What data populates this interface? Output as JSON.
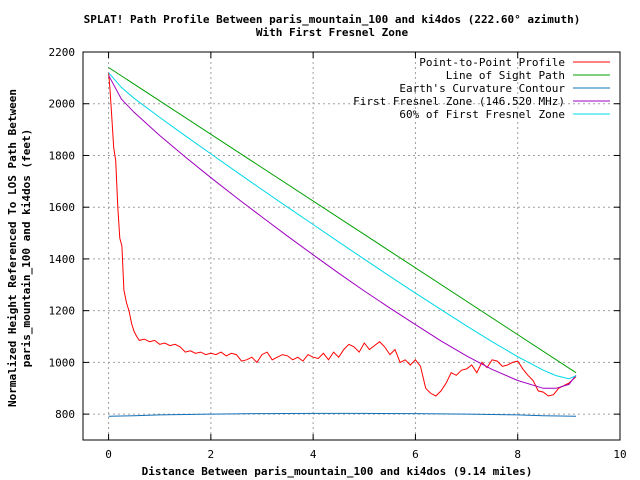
{
  "chart_data": {
    "type": "line",
    "title": "SPLAT! Path Profile Between paris_mountain_100 and ki4dos (222.60° azimuth)",
    "subtitle": "With First Fresnel Zone",
    "xlabel": "Distance Between paris_mountain_100 and ki4dos (9.14 miles)",
    "ylabel_line1": "Normalized Height Referenced To LOS Path Between",
    "ylabel_line2": "paris_mountain_100 and ki4dos (feet)",
    "xlim": [
      -0.5,
      10
    ],
    "ylim": [
      700,
      2200
    ],
    "xticks": [
      0,
      2,
      4,
      6,
      8,
      10
    ],
    "yticks": [
      800,
      1000,
      1200,
      1400,
      1600,
      1800,
      2000,
      2200
    ],
    "grid": true,
    "legend_position": "top-right",
    "series": [
      {
        "name": "Point-to-Point Profile",
        "color": "#ff0000",
        "x": [
          0,
          0.03,
          0.06,
          0.1,
          0.14,
          0.18,
          0.22,
          0.26,
          0.3,
          0.35,
          0.4,
          0.45,
          0.5,
          0.55,
          0.6,
          0.7,
          0.8,
          0.9,
          1.0,
          1.1,
          1.2,
          1.3,
          1.4,
          1.5,
          1.6,
          1.7,
          1.8,
          1.9,
          2.0,
          2.1,
          2.2,
          2.3,
          2.4,
          2.5,
          2.6,
          2.7,
          2.8,
          2.9,
          3.0,
          3.1,
          3.2,
          3.3,
          3.4,
          3.5,
          3.6,
          3.7,
          3.8,
          3.9,
          4.0,
          4.1,
          4.2,
          4.3,
          4.4,
          4.5,
          4.6,
          4.7,
          4.8,
          4.9,
          5.0,
          5.1,
          5.2,
          5.3,
          5.4,
          5.5,
          5.6,
          5.7,
          5.8,
          5.9,
          6.0,
          6.1,
          6.2,
          6.3,
          6.4,
          6.5,
          6.6,
          6.7,
          6.8,
          6.9,
          7.0,
          7.1,
          7.2,
          7.3,
          7.4,
          7.5,
          7.6,
          7.7,
          7.8,
          7.9,
          8.0,
          8.1,
          8.2,
          8.3,
          8.4,
          8.5,
          8.6,
          8.7,
          8.8,
          8.9,
          9.0,
          9.14
        ],
        "y": [
          2120,
          2050,
          1960,
          1830,
          1780,
          1600,
          1480,
          1450,
          1280,
          1230,
          1200,
          1150,
          1120,
          1100,
          1085,
          1090,
          1080,
          1085,
          1070,
          1075,
          1065,
          1070,
          1060,
          1040,
          1045,
          1035,
          1040,
          1030,
          1035,
          1030,
          1040,
          1025,
          1035,
          1030,
          1005,
          1010,
          1020,
          1000,
          1030,
          1040,
          1010,
          1020,
          1030,
          1025,
          1010,
          1020,
          1005,
          1030,
          1020,
          1015,
          1035,
          1010,
          1040,
          1020,
          1050,
          1070,
          1060,
          1040,
          1075,
          1050,
          1065,
          1080,
          1060,
          1030,
          1050,
          1000,
          1010,
          990,
          1010,
          985,
          900,
          880,
          870,
          890,
          920,
          960,
          950,
          970,
          975,
          990,
          960,
          1000,
          980,
          1010,
          1005,
          985,
          990,
          1000,
          1005,
          975,
          950,
          930,
          890,
          885,
          870,
          875,
          900,
          910,
          920,
          945
        ]
      },
      {
        "name": "Line of Sight Path",
        "color": "#00a000",
        "x": [
          0,
          9.14
        ],
        "y": [
          2140,
          960
        ]
      },
      {
        "name": "Earth's Curvature Contour",
        "color": "#1070b8",
        "x": [
          0,
          0.5,
          1,
          2,
          3,
          4,
          5,
          6,
          7,
          8,
          8.5,
          9.14
        ],
        "y": [
          792,
          794,
          797,
          800,
          802,
          803,
          803,
          802,
          800,
          797,
          794,
          792
        ]
      },
      {
        "name": "First Fresnel Zone (146.520 MHz)",
        "color": "#a000c0",
        "x": [
          0,
          0.25,
          0.5,
          1,
          1.5,
          2,
          2.5,
          3,
          3.5,
          4,
          4.5,
          5,
          5.5,
          6,
          6.5,
          7,
          7.5,
          8,
          8.5,
          8.75,
          9.0,
          9.14
        ],
        "y": [
          2110,
          2018,
          1967,
          1877,
          1794,
          1714,
          1637,
          1562,
          1488,
          1416,
          1345,
          1276,
          1210,
          1146,
          1083,
          1025,
          973,
          930,
          900,
          900,
          915,
          950
        ]
      },
      {
        "name": "60% of First Fresnel Zone",
        "color": "#00d8e8",
        "x": [
          0,
          0.25,
          0.5,
          1,
          1.5,
          2,
          2.5,
          3,
          3.5,
          4,
          4.5,
          5,
          5.5,
          6,
          6.5,
          7,
          7.5,
          8,
          8.5,
          8.75,
          9.0,
          9.14
        ],
        "y": [
          2120,
          2063,
          2021,
          1947,
          1876,
          1806,
          1737,
          1668,
          1600,
          1533,
          1466,
          1399,
          1333,
          1268,
          1204,
          1141,
          1080,
          1022,
          970,
          949,
          937,
          948
        ]
      }
    ]
  }
}
